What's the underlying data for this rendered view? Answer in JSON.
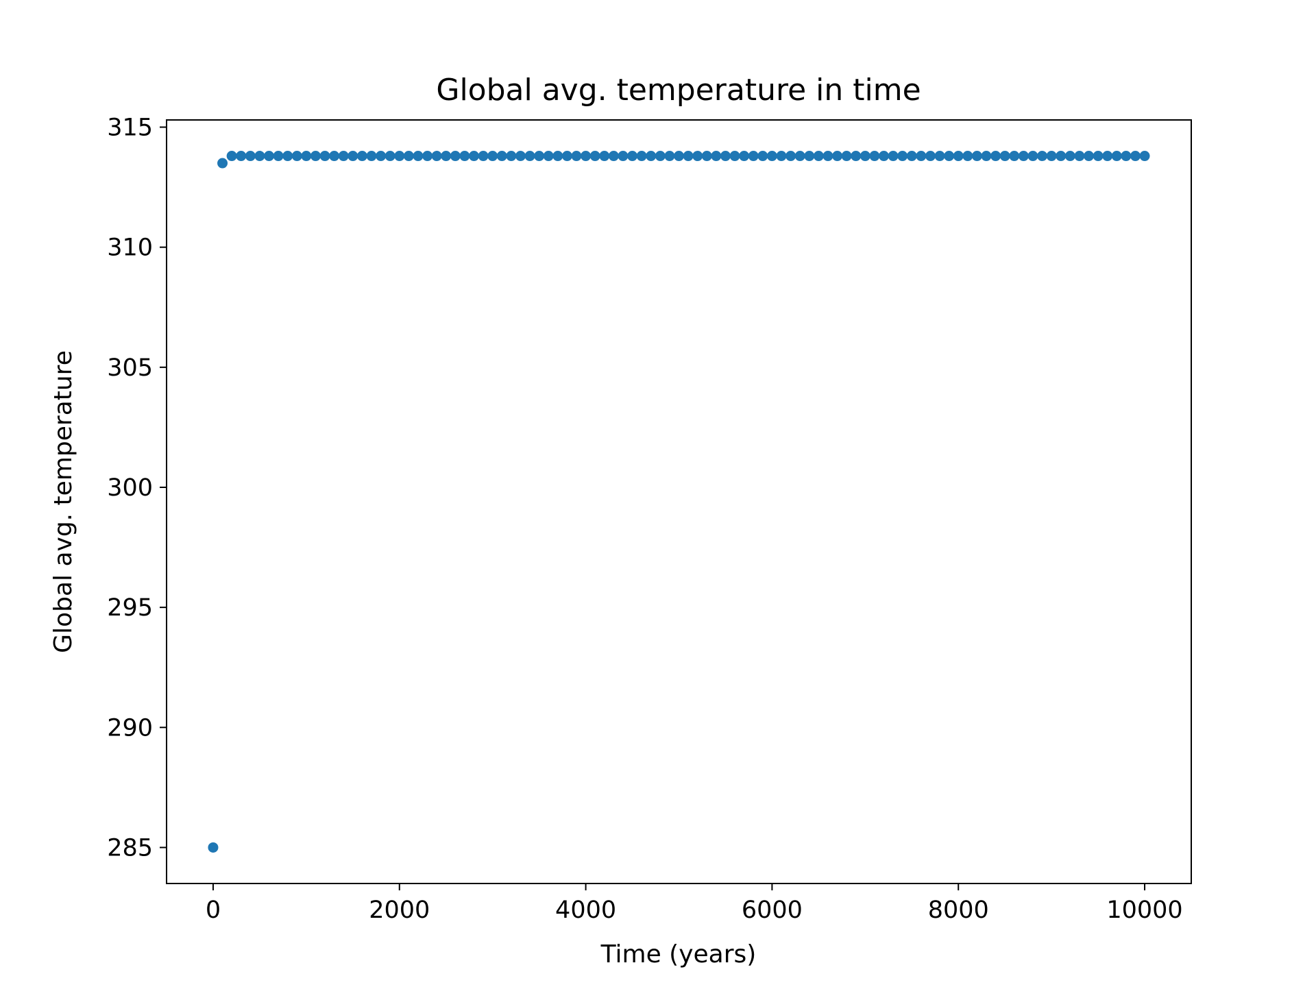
{
  "chart_data": {
    "type": "scatter",
    "title": "Global avg. temperature in time",
    "xlabel": "Time (years)",
    "ylabel": "Global avg. temperature",
    "xlim": [
      -500,
      10500
    ],
    "ylim": [
      283.5,
      315.3
    ],
    "xticks": [
      0,
      2000,
      4000,
      6000,
      8000,
      10000
    ],
    "yticks": [
      285,
      290,
      295,
      300,
      305,
      310,
      315
    ],
    "grid": false,
    "legend": "none",
    "marker_color": "#1f77b4",
    "series": [
      {
        "first_points": [
          {
            "x": 0,
            "y": 285.0
          },
          {
            "x": 100,
            "y": 313.5
          }
        ],
        "steady_x_start": 200,
        "steady_x_end": 10000,
        "steady_x_step": 100,
        "steady_y": 313.8
      }
    ]
  }
}
